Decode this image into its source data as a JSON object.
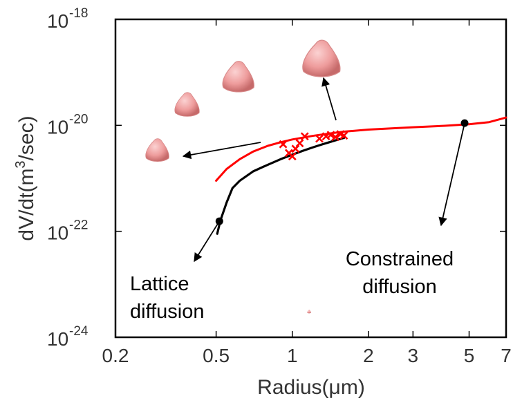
{
  "chart_data": {
    "type": "line",
    "title": "",
    "xlabel": "Radius(μm)",
    "ylabel": "dV/dt(m³/sec)",
    "ylabel_parts": [
      "dV/dt(m",
      "3",
      "/sec)"
    ],
    "xscale": "log",
    "yscale": "log",
    "xlim": [
      0.2,
      7
    ],
    "ylim": [
      1e-24,
      1e-18
    ],
    "x_ticks": [
      {
        "value": 0.2,
        "label": "0.2"
      },
      {
        "value": 0.5,
        "label": "0.5"
      },
      {
        "value": 1,
        "label": "1"
      },
      {
        "value": 2,
        "label": "2"
      },
      {
        "value": 3,
        "label": "3"
      },
      {
        "value": 5,
        "label": "5"
      },
      {
        "value": 7,
        "label": "7"
      }
    ],
    "y_ticks": [
      {
        "value": 1e-24,
        "base": "10",
        "exponent": "-24"
      },
      {
        "value": 1e-22,
        "base": "10",
        "exponent": "-22"
      },
      {
        "value": 1e-20,
        "base": "10",
        "exponent": "-20"
      },
      {
        "value": 1e-18,
        "base": "10",
        "exponent": "-18"
      }
    ],
    "grid": false,
    "colors": {
      "red_curve": "#ff0000",
      "black_curve": "#000000",
      "particle": "#f0a0a0",
      "axis": "#000000"
    },
    "series": [
      {
        "color": "#ff0000",
        "x": [
          0.5,
          0.55,
          0.62,
          0.7,
          0.8,
          0.9,
          1.0,
          1.2,
          1.4,
          1.6,
          2.0,
          3.0,
          4.0,
          5.0,
          6.0,
          7.0
        ],
        "y": [
          9e-22,
          1.5e-21,
          2.3e-21,
          3.2e-21,
          4.1e-21,
          4.8e-21,
          5.4e-21,
          6.3e-21,
          7e-21,
          7.6e-21,
          8.3e-21,
          9.2e-21,
          9.8e-21,
          1.05e-20,
          1.15e-20,
          1.4e-20
        ]
      },
      {
        "color": "#000000",
        "x": [
          0.505,
          0.52,
          0.55,
          0.58,
          0.62,
          0.7,
          0.8,
          0.9,
          1.0,
          1.1,
          1.2,
          1.3,
          1.4,
          1.5,
          1.6
        ],
        "y": [
          9e-23,
          1.6e-22,
          3.5e-22,
          6.5e-22,
          9e-22,
          1.35e-21,
          1.8e-21,
          2.3e-21,
          2.8e-21,
          3.3e-21,
          3.8e-21,
          4.3e-21,
          4.8e-21,
          5.3e-21,
          5.8e-21
        ]
      },
      {
        "color": "#ff0000",
        "marker": "x",
        "x": [
          0.92,
          0.97,
          1.0,
          1.03,
          1.07,
          1.12,
          1.28,
          1.36,
          1.42,
          1.48,
          1.55,
          1.6
        ],
        "y": [
          4.4e-21,
          3e-21,
          2.6e-21,
          3.6e-21,
          4.6e-21,
          6.2e-21,
          5.6e-21,
          6.2e-21,
          6.6e-21,
          6e-21,
          6.8e-21,
          6.4e-21
        ]
      }
    ],
    "highlight_points": [
      {
        "x": 0.515,
        "y": 1.55e-22
      },
      {
        "x": 4.8,
        "y": 1.1e-20
      }
    ],
    "annotations": [
      {
        "text_lines": [
          "Lattice",
          "diffusion"
        ]
      },
      {
        "text_lines": [
          "Constrained",
          "diffusion"
        ]
      }
    ],
    "particle_icons": [
      "particle-icon",
      "particle-icon",
      "particle-icon",
      "particle-icon",
      "particle-icon"
    ]
  }
}
